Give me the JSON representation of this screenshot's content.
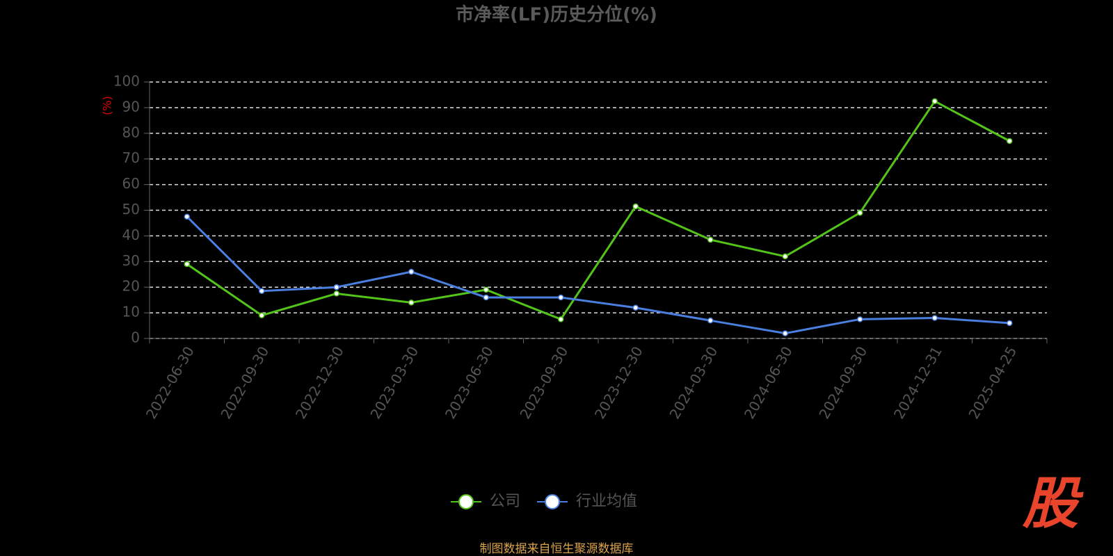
{
  "chart_data": {
    "type": "line",
    "title": "市净率(LF)历史分位(%)",
    "y_label": "(%)",
    "categories": [
      "2022-06-30",
      "2022-09-30",
      "2022-12-30",
      "2023-03-30",
      "2023-06-30",
      "2023-09-30",
      "2023-12-30",
      "2024-03-30",
      "2024-06-30",
      "2024-09-30",
      "2024-12-31",
      "2025-04-25"
    ],
    "series": [
      {
        "name": "公司",
        "color": "#52c41a",
        "values": [
          29,
          9,
          17.5,
          14,
          19,
          7.5,
          51.5,
          38.5,
          32,
          49,
          92.5,
          77
        ]
      },
      {
        "name": "行业均值",
        "color": "#4a7fe0",
        "values": [
          47.5,
          18.5,
          20,
          26,
          16,
          16,
          12,
          7,
          2,
          7.5,
          8,
          6
        ]
      }
    ],
    "ylim": [
      0,
      100
    ],
    "yticks": [
      0,
      10,
      20,
      30,
      40,
      50,
      60,
      70,
      80,
      90,
      100
    ],
    "grid": true,
    "source": "制图数据来自恒生聚源数据库",
    "watermark": "股"
  }
}
